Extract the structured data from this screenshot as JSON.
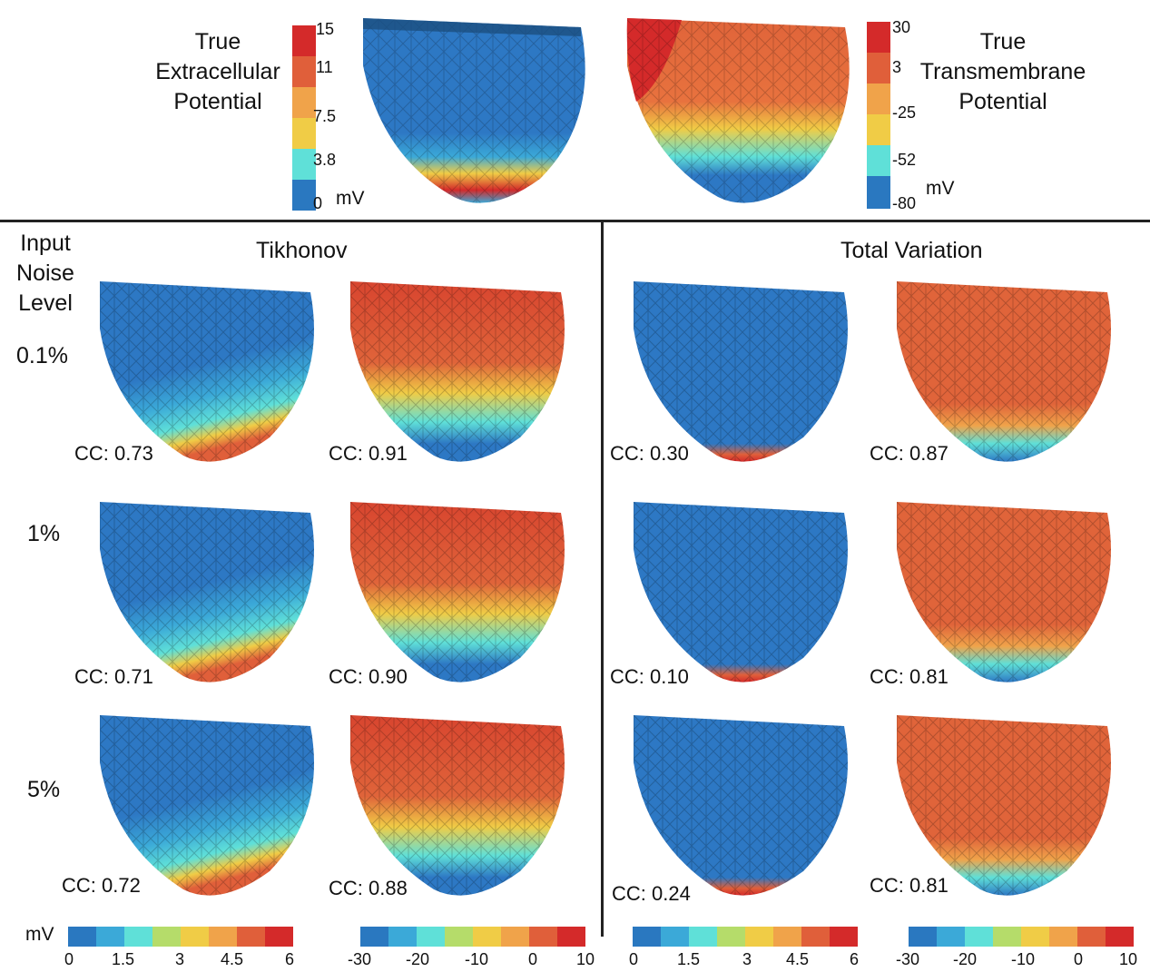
{
  "top": {
    "extracellular_title": [
      "True",
      "Extracellular",
      "Potential"
    ],
    "transmembrane_title": [
      "True",
      "Transmembrane",
      "Potential"
    ],
    "left_scale_ticks": [
      "15",
      "11",
      "7.5",
      "3.8",
      "0"
    ],
    "right_scale_ticks": [
      "30",
      "3",
      "-25",
      "-52",
      "-80"
    ],
    "unit": "mV"
  },
  "sections": {
    "noise_header": [
      "Input",
      "Noise",
      "Level"
    ],
    "tikhonov": "Tikhonov",
    "total_variation": "Total Variation"
  },
  "rows": [
    {
      "noise": "0.1%",
      "cc": [
        "CC: 0.73",
        "CC: 0.91",
        "CC: 0.30",
        "CC: 0.87"
      ]
    },
    {
      "noise": "1%",
      "cc": [
        "CC: 0.71",
        "CC: 0.90",
        "CC: 0.10",
        "CC: 0.81"
      ]
    },
    {
      "noise": "5%",
      "cc": [
        "CC: 0.72",
        "CC: 0.88",
        "CC: 0.24",
        "CC: 0.81"
      ]
    }
  ],
  "bottom_scales": {
    "unit": "mV",
    "extracellular_ticks": [
      "0",
      "1.5",
      "3",
      "4.5",
      "6"
    ],
    "transmembrane_ticks": [
      "-30",
      "-20",
      "-10",
      "0",
      "10"
    ]
  },
  "colors": {
    "scale": [
      "#2a78c0",
      "#3ba9d8",
      "#5fe0d8",
      "#b5dc6a",
      "#f0cc46",
      "#f0a34a",
      "#e05f3a",
      "#d42a2a"
    ],
    "blue": "#2d78c4",
    "orange": "#e06a3a"
  }
}
